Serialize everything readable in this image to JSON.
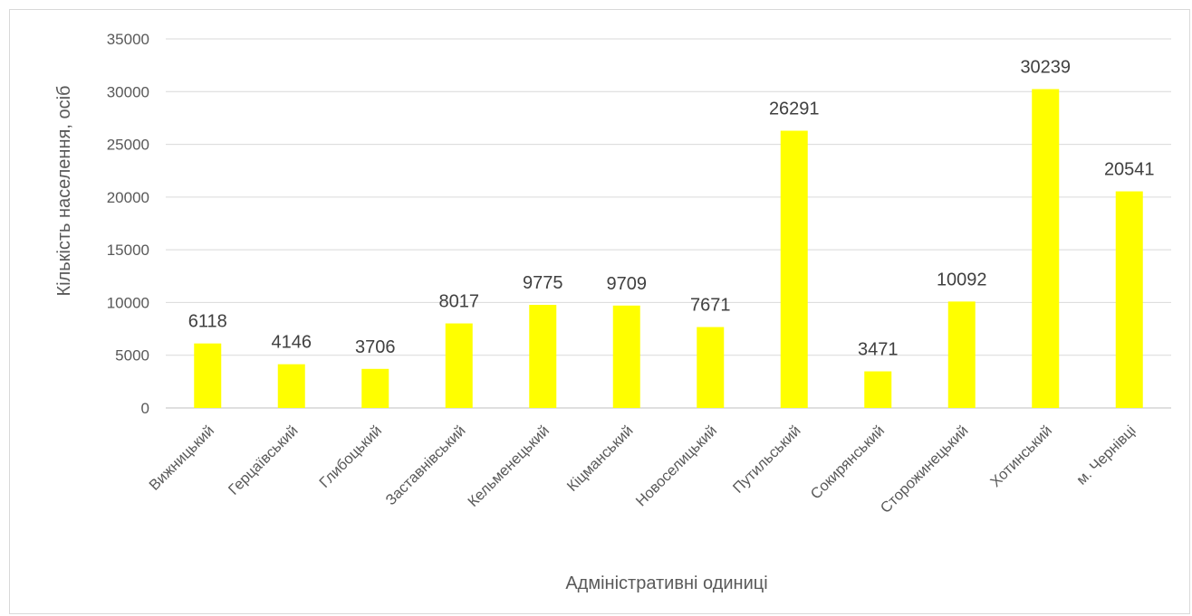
{
  "chart_data": {
    "type": "bar",
    "title": "",
    "xlabel": "Адміністративні одиниці",
    "ylabel": "Кількість населення, осіб",
    "categories": [
      "Вижницький",
      "Герцаївський",
      "Глибоцький",
      "Заставнівський",
      "Кельменецький",
      "Кіцманський",
      "Новоселицький",
      "Путильський",
      "Сокирянський",
      "Сторожинецький",
      "Хотинський",
      "м. Чернівці"
    ],
    "values": [
      6118,
      4146,
      3706,
      8017,
      9775,
      9709,
      7671,
      26291,
      3471,
      10092,
      30239,
      20541
    ],
    "ylim": [
      0,
      35000
    ],
    "yticks": [
      0,
      5000,
      10000,
      15000,
      20000,
      25000,
      30000,
      35000
    ],
    "grid": true,
    "legend": "none",
    "data_labels": true,
    "colors": {
      "bar": "#ffff00",
      "grid": "#d9d9d9",
      "axis": "#bfbfbf"
    }
  }
}
